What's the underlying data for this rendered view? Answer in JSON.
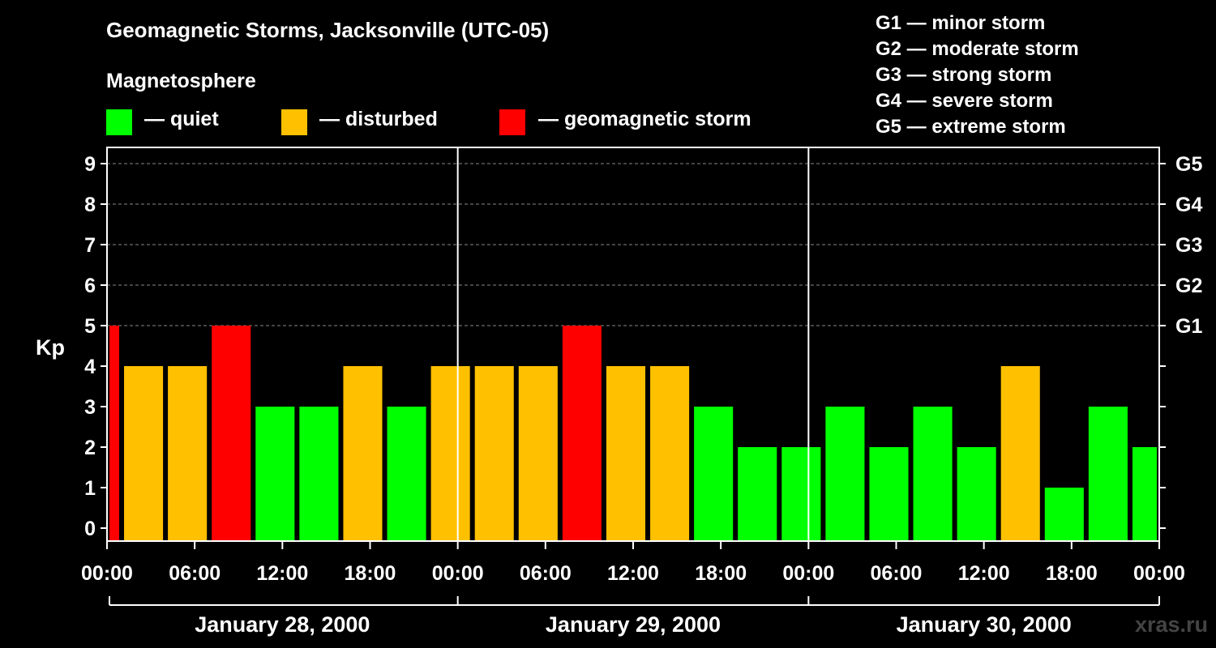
{
  "title": "Geomagnetic Storms, Jacksonville (UTC-05)",
  "magnetosphere_label": "Magnetosphere",
  "legend": [
    {
      "label": "— quiet",
      "color": "#00ff00"
    },
    {
      "label": "— disturbed",
      "color": "#ffc000"
    },
    {
      "label": "— geomagnetic storm",
      "color": "#ff0000"
    }
  ],
  "g_scale": [
    "G1 — minor storm",
    "G2 — moderate storm",
    "G3 — strong storm",
    "G4 — severe storm",
    "G5 — extreme storm"
  ],
  "watermark": "xras.ru",
  "chart_data": {
    "type": "bar",
    "ylabel": "Kp",
    "ylim": [
      0,
      9
    ],
    "yticks": [
      0,
      1,
      2,
      3,
      4,
      5,
      6,
      7,
      8,
      9
    ],
    "right_ticks": [
      {
        "kp": 5,
        "label": "G1"
      },
      {
        "kp": 6,
        "label": "G2"
      },
      {
        "kp": 7,
        "label": "G3"
      },
      {
        "kp": 8,
        "label": "G4"
      },
      {
        "kp": 9,
        "label": "G5"
      }
    ],
    "xlim_hours": [
      0,
      72
    ],
    "xticks": [
      {
        "hour": 0,
        "label": "00:00"
      },
      {
        "hour": 6,
        "label": "06:00"
      },
      {
        "hour": 12,
        "label": "12:00"
      },
      {
        "hour": 18,
        "label": "18:00"
      },
      {
        "hour": 24,
        "label": "00:00"
      },
      {
        "hour": 30,
        "label": "06:00"
      },
      {
        "hour": 36,
        "label": "12:00"
      },
      {
        "hour": 42,
        "label": "18:00"
      },
      {
        "hour": 48,
        "label": "00:00"
      },
      {
        "hour": 54,
        "label": "06:00"
      },
      {
        "hour": 60,
        "label": "12:00"
      },
      {
        "hour": 66,
        "label": "18:00"
      },
      {
        "hour": 72,
        "label": "00:00"
      }
    ],
    "days": [
      {
        "label": "January 28, 2000",
        "start_hour": 0,
        "end_hour": 24
      },
      {
        "label": "January 29, 2000",
        "start_hour": 24,
        "end_hour": 48
      },
      {
        "label": "January 30, 2000",
        "start_hour": 48,
        "end_hour": 72
      }
    ],
    "bars": [
      {
        "start_hour": 0,
        "end_hour": 1,
        "kp": 5,
        "color": "#ff0000"
      },
      {
        "start_hour": 1,
        "end_hour": 4,
        "kp": 4,
        "color": "#ffc000"
      },
      {
        "start_hour": 4,
        "end_hour": 7,
        "kp": 4,
        "color": "#ffc000"
      },
      {
        "start_hour": 7,
        "end_hour": 10,
        "kp": 5,
        "color": "#ff0000"
      },
      {
        "start_hour": 10,
        "end_hour": 13,
        "kp": 3,
        "color": "#00ff00"
      },
      {
        "start_hour": 13,
        "end_hour": 16,
        "kp": 3,
        "color": "#00ff00"
      },
      {
        "start_hour": 16,
        "end_hour": 19,
        "kp": 4,
        "color": "#ffc000"
      },
      {
        "start_hour": 19,
        "end_hour": 22,
        "kp": 3,
        "color": "#00ff00"
      },
      {
        "start_hour": 22,
        "end_hour": 25,
        "kp": 4,
        "color": "#ffc000"
      },
      {
        "start_hour": 25,
        "end_hour": 28,
        "kp": 4,
        "color": "#ffc000"
      },
      {
        "start_hour": 28,
        "end_hour": 31,
        "kp": 4,
        "color": "#ffc000"
      },
      {
        "start_hour": 31,
        "end_hour": 34,
        "kp": 5,
        "color": "#ff0000"
      },
      {
        "start_hour": 34,
        "end_hour": 37,
        "kp": 4,
        "color": "#ffc000"
      },
      {
        "start_hour": 37,
        "end_hour": 40,
        "kp": 4,
        "color": "#ffc000"
      },
      {
        "start_hour": 40,
        "end_hour": 43,
        "kp": 3,
        "color": "#00ff00"
      },
      {
        "start_hour": 43,
        "end_hour": 46,
        "kp": 2,
        "color": "#00ff00"
      },
      {
        "start_hour": 46,
        "end_hour": 49,
        "kp": 2,
        "color": "#00ff00"
      },
      {
        "start_hour": 49,
        "end_hour": 52,
        "kp": 3,
        "color": "#00ff00"
      },
      {
        "start_hour": 52,
        "end_hour": 55,
        "kp": 2,
        "color": "#00ff00"
      },
      {
        "start_hour": 55,
        "end_hour": 58,
        "kp": 3,
        "color": "#00ff00"
      },
      {
        "start_hour": 58,
        "end_hour": 61,
        "kp": 2,
        "color": "#00ff00"
      },
      {
        "start_hour": 61,
        "end_hour": 64,
        "kp": 4,
        "color": "#ffc000"
      },
      {
        "start_hour": 64,
        "end_hour": 67,
        "kp": 1,
        "color": "#00ff00"
      },
      {
        "start_hour": 67,
        "end_hour": 70,
        "kp": 3,
        "color": "#00ff00"
      },
      {
        "start_hour": 70,
        "end_hour": 72,
        "kp": 2,
        "color": "#00ff00"
      }
    ]
  }
}
